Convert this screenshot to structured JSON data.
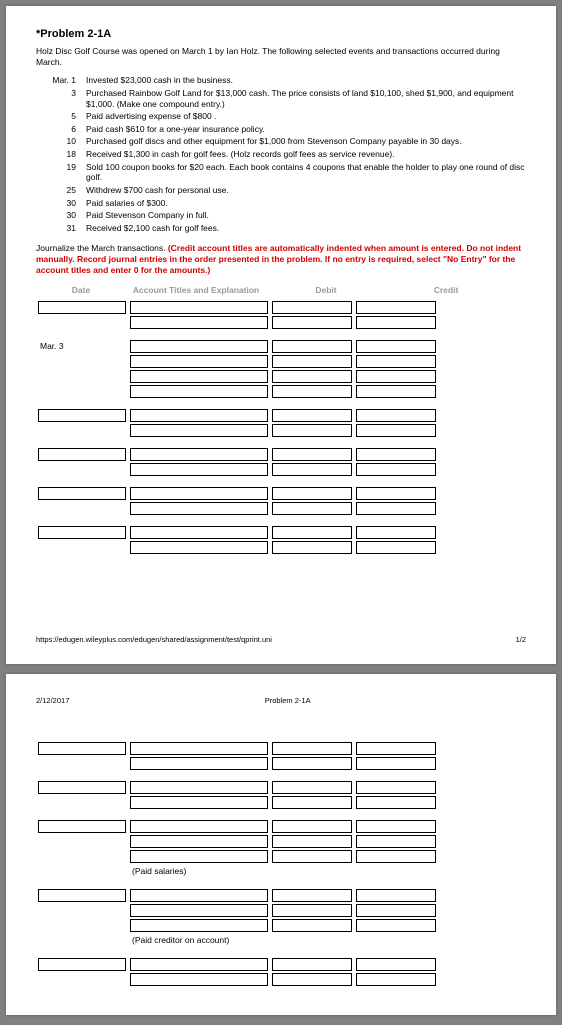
{
  "page1": {
    "title": "*Problem 2-1A",
    "intro": "Holz Disc Golf Course was opened on March 1 by Ian Holz. The following selected events and transactions occurred during March.",
    "transactions": [
      {
        "date": "Mar. 1",
        "desc": "Invested $23,000 cash in the business."
      },
      {
        "date": "3",
        "desc": "Purchased Rainbow Golf Land for $13,000 cash. The price consists of land $10,100, shed $1,900, and equipment $1,000. (Make one compound entry.)"
      },
      {
        "date": "5",
        "desc": "Paid advertising expense of $800 ."
      },
      {
        "date": "6",
        "desc": "Paid cash $610 for a one-year insurance policy."
      },
      {
        "date": "10",
        "desc": "Purchased golf discs and other equipment for $1,000 from Stevenson Company payable in 30 days."
      },
      {
        "date": "18",
        "desc": "Received $1,300 in cash for golf fees. (Holz records golf fees as service revenue)."
      },
      {
        "date": "19",
        "desc": "Sold 100 coupon books for $20 each. Each book contains 4 coupons that enable the holder to play one round of disc golf."
      },
      {
        "date": "25",
        "desc": "Withdrew $700 cash for personal use."
      },
      {
        "date": "30",
        "desc": "Paid salaries of $300."
      },
      {
        "date": "30",
        "desc": "Paid Stevenson Company in full."
      },
      {
        "date": "31",
        "desc": "Received $2,100 cash for golf fees."
      }
    ],
    "journalize_black": "Journalize the March transactions. ",
    "journalize_red": "(Credit account titles are automatically indented when amount is entered. Do not indent manually. Record journal entries in the order presented in the problem. If no entry is required, select \"No Entry\" for the account titles and enter 0 for the amounts.)",
    "headers": {
      "date": "Date",
      "acct": "Account Titles and Explanation",
      "debit": "Debit",
      "credit": "Credit"
    },
    "groups": [
      {
        "date_input": true,
        "date_label": "",
        "rows": 2
      },
      {
        "date_input": false,
        "date_label": "Mar. 3",
        "rows": 4
      },
      {
        "date_input": true,
        "date_label": "",
        "rows": 2
      },
      {
        "date_input": true,
        "date_label": "",
        "rows": 2
      },
      {
        "date_input": true,
        "date_label": "",
        "rows": 2
      },
      {
        "date_input": true,
        "date_label": "",
        "rows": 2
      }
    ],
    "footer_url": "https://edugen.wileyplus.com/edugen/shared/assignment/test/qprint.uni",
    "footer_page": "1/2"
  },
  "page2": {
    "header_date": "2/12/2017",
    "header_title": "Problem 2-1A",
    "groups": [
      {
        "date_input": true,
        "date_label": "",
        "rows": 2,
        "caption": ""
      },
      {
        "date_input": true,
        "date_label": "",
        "rows": 2,
        "caption": ""
      },
      {
        "date_input": true,
        "date_label": "",
        "rows": 3,
        "caption": "(Paid salaries)"
      },
      {
        "date_input": true,
        "date_label": "",
        "rows": 3,
        "caption": "(Paid creditor on account)"
      },
      {
        "date_input": true,
        "date_label": "",
        "rows": 2,
        "caption": ""
      }
    ]
  }
}
